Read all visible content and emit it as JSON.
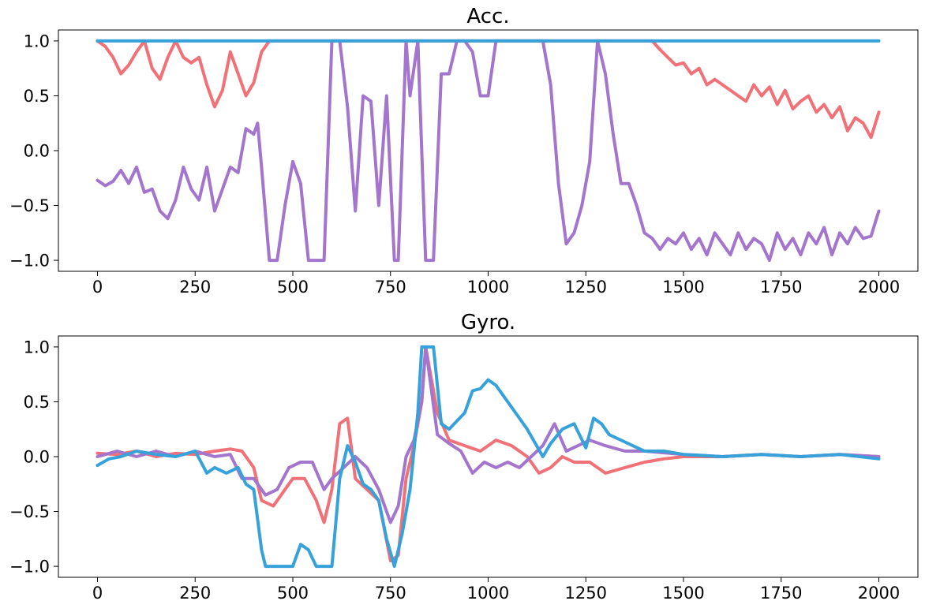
{
  "chart_data": [
    {
      "type": "line",
      "title": "Acc.",
      "xlabel": "",
      "ylabel": "",
      "xlim": [
        -100,
        2100
      ],
      "ylim": [
        -1.1,
        1.1
      ],
      "xticks": [
        0,
        250,
        500,
        750,
        1000,
        1250,
        1500,
        1750,
        2000
      ],
      "yticks": [
        1.0,
        0.5,
        0.0,
        -0.5,
        -1.0
      ],
      "xtick_labels": [
        "0",
        "250",
        "500",
        "750",
        "1000",
        "1250",
        "1500",
        "1750",
        "2000"
      ],
      "ytick_labels": [
        "1.0",
        "0.5",
        "0.0",
        "−0.5",
        "−1.0"
      ],
      "grid": false,
      "series": [
        {
          "color": "#f07178",
          "x": [
            0,
            20,
            40,
            60,
            80,
            100,
            120,
            140,
            160,
            180,
            200,
            220,
            240,
            260,
            280,
            300,
            320,
            340,
            360,
            380,
            400,
            420,
            440,
            460,
            1420,
            1440,
            1460,
            1480,
            1500,
            1520,
            1540,
            1560,
            1580,
            1600,
            1620,
            1640,
            1660,
            1680,
            1700,
            1720,
            1740,
            1760,
            1780,
            1800,
            1820,
            1840,
            1860,
            1880,
            1900,
            1920,
            1940,
            1960,
            1980,
            2000
          ],
          "y": [
            1.0,
            0.95,
            0.85,
            0.7,
            0.78,
            0.9,
            1.0,
            0.75,
            0.65,
            0.85,
            1.0,
            0.85,
            0.8,
            0.85,
            0.6,
            0.4,
            0.55,
            0.9,
            0.7,
            0.5,
            0.62,
            0.9,
            1.0,
            1.0,
            1.0,
            0.92,
            0.85,
            0.78,
            0.8,
            0.7,
            0.75,
            0.6,
            0.65,
            0.6,
            0.55,
            0.5,
            0.45,
            0.6,
            0.5,
            0.58,
            0.42,
            0.55,
            0.38,
            0.45,
            0.5,
            0.35,
            0.42,
            0.3,
            0.4,
            0.18,
            0.3,
            0.25,
            0.12,
            0.35
          ]
        },
        {
          "color": "#a475cc",
          "x": [
            0,
            20,
            40,
            60,
            80,
            100,
            120,
            140,
            160,
            180,
            200,
            220,
            240,
            260,
            280,
            300,
            320,
            340,
            360,
            380,
            400,
            410,
            420,
            440,
            460,
            480,
            500,
            520,
            540,
            560,
            580,
            600,
            620,
            640,
            660,
            680,
            700,
            720,
            740,
            760,
            770,
            790,
            800,
            820,
            840,
            860,
            880,
            900,
            920,
            940,
            960,
            980,
            1000,
            1020,
            1040,
            1060,
            1100,
            1140,
            1160,
            1180,
            1200,
            1220,
            1240,
            1260,
            1280,
            1300,
            1320,
            1340,
            1360,
            1380,
            1400,
            1420,
            1440,
            1460,
            1480,
            1500,
            1520,
            1540,
            1560,
            1580,
            1600,
            1620,
            1640,
            1660,
            1680,
            1700,
            1720,
            1740,
            1760,
            1780,
            1800,
            1820,
            1840,
            1860,
            1880,
            1900,
            1920,
            1940,
            1960,
            1980,
            2000
          ],
          "y": [
            -0.27,
            -0.32,
            -0.28,
            -0.18,
            -0.3,
            -0.15,
            -0.38,
            -0.35,
            -0.55,
            -0.62,
            -0.45,
            -0.15,
            -0.35,
            -0.45,
            -0.15,
            -0.55,
            -0.35,
            -0.15,
            -0.2,
            0.2,
            0.15,
            0.25,
            -0.15,
            -1.0,
            -1.0,
            -0.5,
            -0.1,
            -0.3,
            -1.0,
            -1.0,
            -1.0,
            1.0,
            1.0,
            0.4,
            -0.55,
            0.5,
            0.45,
            -0.5,
            0.5,
            -1.0,
            -1.0,
            1.0,
            0.5,
            1.0,
            -1.0,
            -1.0,
            0.7,
            0.7,
            1.0,
            1.0,
            0.9,
            0.5,
            0.5,
            1.0,
            1.0,
            1.0,
            1.0,
            1.0,
            0.6,
            -0.3,
            -0.85,
            -0.75,
            -0.5,
            -0.1,
            1.0,
            0.7,
            0.15,
            -0.3,
            -0.3,
            -0.5,
            -0.75,
            -0.8,
            -0.9,
            -0.8,
            -0.85,
            -0.75,
            -0.9,
            -0.8,
            -0.95,
            -0.75,
            -0.85,
            -0.95,
            -0.75,
            -0.9,
            -0.8,
            -0.85,
            -1.0,
            -0.75,
            -0.9,
            -0.8,
            -0.95,
            -0.75,
            -0.85,
            -0.7,
            -0.95,
            -0.75,
            -0.85,
            -0.7,
            -0.8,
            -0.78,
            -0.55
          ]
        },
        {
          "color": "#36a2d9",
          "x": [
            0,
            2000
          ],
          "y": [
            1.0,
            1.0
          ]
        }
      ]
    },
    {
      "type": "line",
      "title": "Gyro.",
      "xlabel": "",
      "ylabel": "",
      "xlim": [
        -100,
        2100
      ],
      "ylim": [
        -1.1,
        1.1
      ],
      "xticks": [
        0,
        250,
        500,
        750,
        1000,
        1250,
        1500,
        1750,
        2000
      ],
      "yticks": [
        1.0,
        0.5,
        0.0,
        -0.5,
        -1.0
      ],
      "xtick_labels": [
        "0",
        "250",
        "500",
        "750",
        "1000",
        "1250",
        "1500",
        "1750",
        "2000"
      ],
      "ytick_labels": [
        "1.0",
        "0.5",
        "0.0",
        "−0.5",
        "−1.0"
      ],
      "grid": false,
      "series": [
        {
          "color": "#f07178",
          "x": [
            0,
            50,
            100,
            150,
            200,
            250,
            300,
            340,
            370,
            400,
            420,
            450,
            480,
            500,
            530,
            560,
            580,
            600,
            620,
            640,
            660,
            690,
            720,
            750,
            770,
            790,
            810,
            830,
            840,
            870,
            900,
            940,
            980,
            1020,
            1060,
            1100,
            1130,
            1160,
            1190,
            1220,
            1260,
            1300,
            1350,
            1400,
            1450,
            1500,
            1600,
            1700,
            1800,
            1900,
            2000
          ],
          "y": [
            0.03,
            0.02,
            0.05,
            0.0,
            0.03,
            0.02,
            0.05,
            0.07,
            0.05,
            -0.1,
            -0.4,
            -0.45,
            -0.3,
            -0.2,
            -0.2,
            -0.4,
            -0.6,
            -0.3,
            0.3,
            0.35,
            -0.2,
            -0.3,
            -0.4,
            -0.95,
            -0.9,
            -0.2,
            0.1,
            0.5,
            1.0,
            0.4,
            0.15,
            0.1,
            0.05,
            0.15,
            0.1,
            0.0,
            -0.15,
            -0.1,
            0.0,
            -0.05,
            -0.05,
            -0.15,
            -0.1,
            -0.05,
            -0.02,
            0.0,
            0.0,
            0.02,
            0.0,
            0.02,
            0.0
          ]
        },
        {
          "color": "#a475cc",
          "x": [
            0,
            50,
            100,
            150,
            200,
            250,
            300,
            340,
            370,
            400,
            430,
            460,
            490,
            520,
            550,
            580,
            600,
            630,
            660,
            690,
            720,
            750,
            770,
            790,
            810,
            830,
            840,
            870,
            900,
            930,
            960,
            990,
            1020,
            1050,
            1080,
            1110,
            1140,
            1170,
            1200,
            1230,
            1260,
            1300,
            1350,
            1400,
            1500,
            1600,
            1700,
            1800,
            1900,
            2000
          ],
          "y": [
            0.0,
            0.05,
            0.0,
            0.05,
            0.0,
            0.05,
            0.0,
            0.02,
            -0.2,
            -0.2,
            -0.35,
            -0.3,
            -0.1,
            -0.05,
            -0.05,
            -0.3,
            -0.2,
            -0.1,
            0.0,
            -0.1,
            -0.3,
            -0.6,
            -0.45,
            0.0,
            0.15,
            0.5,
            1.0,
            0.2,
            0.12,
            0.05,
            -0.15,
            -0.05,
            -0.1,
            -0.05,
            -0.1,
            0.0,
            0.1,
            0.3,
            0.05,
            0.1,
            0.15,
            0.1,
            0.05,
            0.05,
            0.02,
            0.0,
            0.02,
            0.0,
            0.02,
            0.0
          ]
        },
        {
          "color": "#36a2d9",
          "x": [
            0,
            30,
            60,
            100,
            150,
            200,
            250,
            280,
            300,
            330,
            360,
            380,
            400,
            420,
            430,
            450,
            470,
            500,
            510,
            520,
            540,
            560,
            580,
            600,
            610,
            620,
            640,
            660,
            680,
            700,
            720,
            740,
            760,
            780,
            800,
            820,
            830,
            860,
            880,
            900,
            940,
            960,
            980,
            1000,
            1020,
            1060,
            1100,
            1140,
            1160,
            1190,
            1220,
            1250,
            1270,
            1290,
            1310,
            1340,
            1370,
            1400,
            1450,
            1500,
            1600,
            1700,
            1800,
            1900,
            2000
          ],
          "y": [
            -0.08,
            -0.02,
            0.0,
            0.05,
            0.02,
            0.0,
            0.05,
            -0.15,
            -0.1,
            -0.15,
            -0.1,
            -0.25,
            -0.3,
            -0.85,
            -1.0,
            -1.0,
            -1.0,
            -1.0,
            -0.9,
            -0.8,
            -0.85,
            -1.0,
            -1.0,
            -1.0,
            -0.6,
            -0.2,
            0.1,
            -0.05,
            -0.25,
            -0.3,
            -0.4,
            -0.75,
            -1.0,
            -0.7,
            -0.3,
            0.4,
            1.0,
            1.0,
            0.3,
            0.25,
            0.4,
            0.6,
            0.62,
            0.7,
            0.65,
            0.45,
            0.25,
            0.0,
            0.12,
            0.25,
            0.3,
            0.08,
            0.35,
            0.3,
            0.2,
            0.15,
            0.1,
            0.05,
            0.05,
            0.02,
            0.0,
            0.02,
            0.0,
            0.02,
            -0.02
          ]
        }
      ]
    }
  ]
}
